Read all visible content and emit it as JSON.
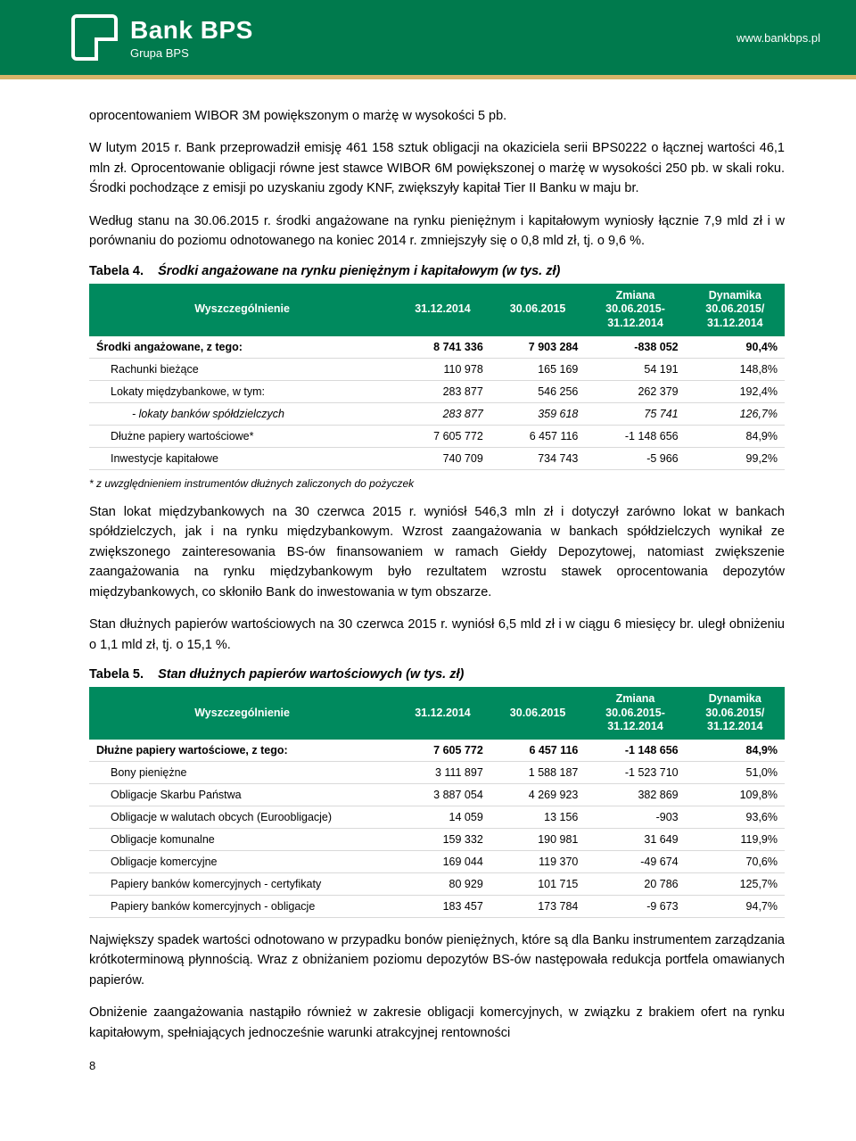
{
  "header": {
    "bank_name": "Bank BPS",
    "group": "Grupa BPS",
    "website": "www.bankbps.pl"
  },
  "colors": {
    "header_bg": "#007a4d",
    "gold_line": "#d7b46a",
    "table_header_bg": "#008a5e",
    "table_header_fg": "#ffffff",
    "row_border": "#d9d9d9"
  },
  "paragraphs": {
    "p1": "oprocentowaniem WIBOR 3M powiększonym o marżę w wysokości 5 pb.",
    "p2": "W lutym 2015 r. Bank przeprowadził emisję 461 158 sztuk obligacji na okaziciela serii BPS0222 o łącznej wartości 46,1 mln zł. Oprocentowanie obligacji równe jest stawce WIBOR 6M powiększonej o marżę w wysokości 250 pb. w skali roku. Środki pochodzące z emisji po uzyskaniu zgody KNF, zwiększyły kapitał Tier II Banku w maju br.",
    "p3": "Według stanu na 30.06.2015 r. środki angażowane na rynku pieniężnym i kapitałowym wyniosły łącznie 7,9 mld zł i w porównaniu do poziomu odnotowanego na koniec 2014 r. zmniejszyły się o 0,8 mld zł, tj. o 9,6 %.",
    "p4": "Stan lokat międzybankowych na 30 czerwca 2015 r. wyniósł 546,3 mln zł i dotyczył zarówno lokat w bankach spółdzielczych, jak i na rynku międzybankowym. Wzrost zaangażowania w bankach spółdzielczych wynikał ze zwiększonego zainteresowania BS-ów finansowaniem w ramach Giełdy Depozytowej, natomiast zwiększenie zaangażowania na rynku międzybankowym było rezultatem wzrostu stawek oprocentowania depozytów międzybankowych, co skłoniło Bank do inwestowania w  tym obszarze.",
    "p5": "Stan dłużnych papierów wartościowych na 30 czerwca 2015 r. wyniósł 6,5 mld zł i w ciągu 6 miesięcy br. uległ obniżeniu o 1,1 mld zł, tj. o 15,1 %.",
    "p6": "Największy spadek wartości odnotowano w przypadku bonów pieniężnych, które są dla Banku instrumentem zarządzania krótkoterminową płynnością. Wraz z obniżaniem poziomu depozytów BS-ów następowała redukcja portfela omawianych papierów.",
    "p7": "Obniżenie zaangażowania nastąpiło również w zakresie obligacji komercyjnych, w związku z brakiem ofert na rynku kapitałowym, spełniających jednocześnie warunki atrakcyjnej rentowności"
  },
  "table4": {
    "caption_label": "Tabela 4.",
    "caption_title": "Środki angażowane na rynku pieniężnym i kapitałowym (w tys. zł)",
    "headers": {
      "col1": "Wyszczególnienie",
      "col2": "31.12.2014",
      "col3": "30.06.2015",
      "col4_l1": "Zmiana",
      "col4_l2": "30.06.2015-",
      "col4_l3": "31.12.2014",
      "col5_l1": "Dynamika",
      "col5_l2": "30.06.2015/",
      "col5_l3": "31.12.2014"
    },
    "rows": [
      {
        "label": "Środki angażowane, z tego:",
        "v1": "8 741 336",
        "v2": "7 903 284",
        "v3": "-838 052",
        "v4": "90,4%",
        "bold": true,
        "indent": 0
      },
      {
        "label": "Rachunki bieżące",
        "v1": "110 978",
        "v2": "165 169",
        "v3": "54 191",
        "v4": "148,8%",
        "indent": 1
      },
      {
        "label": "Lokaty międzybankowe, w tym:",
        "v1": "283 877",
        "v2": "546 256",
        "v3": "262 379",
        "v4": "192,4%",
        "indent": 1
      },
      {
        "label": "- lokaty banków spółdzielczych",
        "v1": "283 877",
        "v2": "359 618",
        "v3": "75 741",
        "v4": "126,7%",
        "indent": 2,
        "italic": true
      },
      {
        "label": "Dłużne papiery wartościowe*",
        "v1": "7 605 772",
        "v2": "6 457 116",
        "v3": "-1 148 656",
        "v4": "84,9%",
        "indent": 1
      },
      {
        "label": "Inwestycje kapitałowe",
        "v1": "740 709",
        "v2": "734 743",
        "v3": "-5 966",
        "v4": "99,2%",
        "indent": 1
      }
    ],
    "footnote": "* z uwzględnieniem instrumentów dłużnych zaliczonych do pożyczek"
  },
  "table5": {
    "caption_label": "Tabela 5.",
    "caption_title": "Stan dłużnych papierów wartościowych (w tys. zł)",
    "headers": {
      "col1": "Wyszczególnienie",
      "col2": "31.12.2014",
      "col3": "30.06.2015",
      "col4_l1": "Zmiana",
      "col4_l2": "30.06.2015-",
      "col4_l3": "31.12.2014",
      "col5_l1": "Dynamika",
      "col5_l2": "30.06.2015/",
      "col5_l3": "31.12.2014"
    },
    "rows": [
      {
        "label": "Dłużne papiery wartościowe, z tego:",
        "v1": "7 605 772",
        "v2": "6 457 116",
        "v3": "-1 148 656",
        "v4": "84,9%",
        "bold": true,
        "indent": 0
      },
      {
        "label": "Bony pieniężne",
        "v1": "3 111 897",
        "v2": "1 588 187",
        "v3": "-1 523 710",
        "v4": "51,0%",
        "indent": 1
      },
      {
        "label": "Obligacje Skarbu Państwa",
        "v1": "3 887 054",
        "v2": "4 269 923",
        "v3": "382 869",
        "v4": "109,8%",
        "indent": 1
      },
      {
        "label": "Obligacje w walutach obcych (Euroobligacje)",
        "v1": "14 059",
        "v2": "13 156",
        "v3": "-903",
        "v4": "93,6%",
        "indent": 1
      },
      {
        "label": "Obligacje komunalne",
        "v1": "159 332",
        "v2": "190 981",
        "v3": "31 649",
        "v4": "119,9%",
        "indent": 1
      },
      {
        "label": "Obligacje komercyjne",
        "v1": "169 044",
        "v2": "119 370",
        "v3": "-49 674",
        "v4": "70,6%",
        "indent": 1
      },
      {
        "label": "Papiery banków komercyjnych - certyfikaty",
        "v1": "80 929",
        "v2": "101 715",
        "v3": "20 786",
        "v4": "125,7%",
        "indent": 1
      },
      {
        "label": "Papiery banków komercyjnych - obligacje",
        "v1": "183 457",
        "v2": "173 784",
        "v3": "-9 673",
        "v4": "94,7%",
        "indent": 1
      }
    ]
  },
  "page_number": "8"
}
